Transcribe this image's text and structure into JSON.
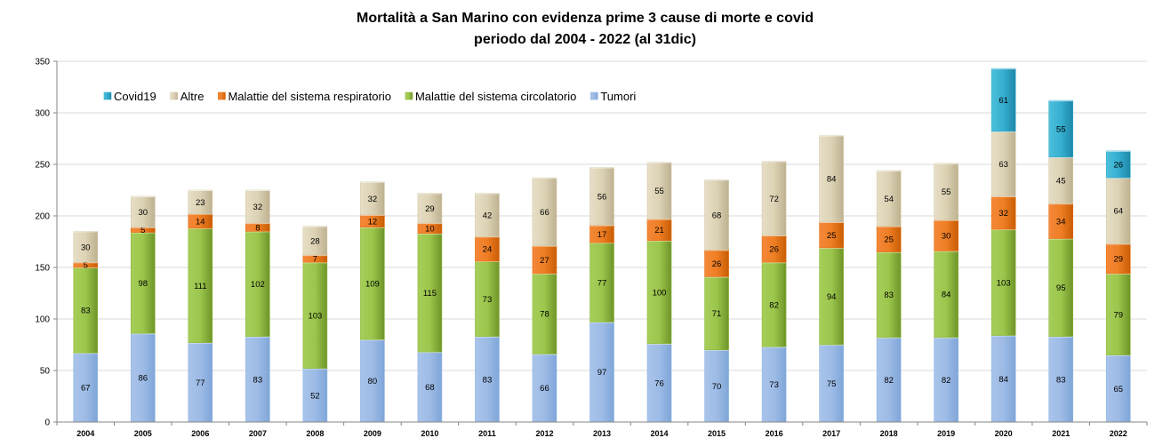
{
  "chart_data": {
    "type": "bar",
    "stacked": true,
    "title": [
      "Mortalità a San Marino con evidenza prime 3 cause di morte  e covid",
      "periodo dal 2004 - 2022 (al 31dic)"
    ],
    "xlabel": "",
    "ylabel": "",
    "ylim": [
      0,
      350
    ],
    "yticks": [
      0,
      50,
      100,
      150,
      200,
      250,
      300,
      350
    ],
    "grid": true,
    "legend_position": "top-left",
    "categories": [
      "2004",
      "2005",
      "2006",
      "2007",
      "2008",
      "2009",
      "2010",
      "2011",
      "2012",
      "2013",
      "2014",
      "2015",
      "2016",
      "2017",
      "2018",
      "2019",
      "2020",
      "2021",
      "2022"
    ],
    "series": [
      {
        "name": "Tumori",
        "color": "#8EB4E3",
        "values": [
          67,
          86,
          77,
          83,
          52,
          80,
          68,
          83,
          66,
          97,
          76,
          70,
          73,
          75,
          82,
          82,
          84,
          83,
          65
        ]
      },
      {
        "name": "Malattie del sistema circolatorio",
        "color": "#8DB63C",
        "values": [
          83,
          98,
          111,
          102,
          103,
          109,
          115,
          73,
          78,
          77,
          100,
          71,
          82,
          94,
          83,
          84,
          103,
          95,
          79
        ]
      },
      {
        "name": "Malattie del sistema respiratorio",
        "color": "#E46C0A",
        "values": [
          5,
          5,
          14,
          8,
          7,
          12,
          10,
          24,
          27,
          17,
          21,
          26,
          26,
          25,
          25,
          30,
          32,
          34,
          29
        ]
      },
      {
        "name": "Altre",
        "color": "#D4C9A8",
        "values": [
          30,
          30,
          23,
          32,
          28,
          32,
          29,
          42,
          66,
          56,
          55,
          68,
          72,
          84,
          54,
          55,
          63,
          45,
          64
        ]
      },
      {
        "name": "Covid19",
        "color": "#31A9C8",
        "values": [
          0,
          0,
          0,
          0,
          0,
          0,
          0,
          0,
          0,
          0,
          0,
          0,
          0,
          0,
          0,
          0,
          61,
          55,
          26
        ]
      }
    ],
    "legend_order": [
      "Covid19",
      "Altre",
      "Malattie del sistema respiratorio",
      "Malattie del sistema circolatorio",
      "Tumori"
    ]
  }
}
